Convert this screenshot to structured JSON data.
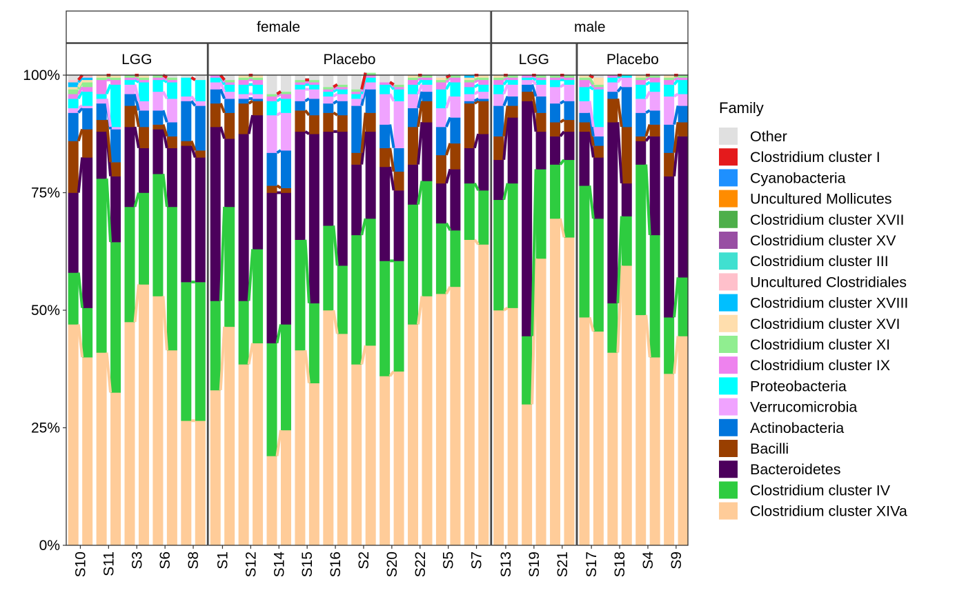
{
  "chart_data": {
    "type": "bar",
    "stacked": true,
    "ylabel": "",
    "xlabel": "",
    "ylim": [
      0,
      1
    ],
    "yticks": [
      {
        "value": 0,
        "label": "0%"
      },
      {
        "value": 0.25,
        "label": "25%"
      },
      {
        "value": 0.5,
        "label": "50%"
      },
      {
        "value": 0.75,
        "label": "75%"
      },
      {
        "value": 1,
        "label": "100%"
      }
    ],
    "legend_title": "Family",
    "legend_position": "right",
    "families": [
      {
        "name": "Other",
        "color": "#E0E0E0"
      },
      {
        "name": "Clostridium cluster I",
        "color": "#E41A1C"
      },
      {
        "name": "Cyanobacteria",
        "color": "#1E90FF"
      },
      {
        "name": "Uncultured Mollicutes",
        "color": "#FF8C00"
      },
      {
        "name": "Clostridium cluster XVII",
        "color": "#4DAF4A"
      },
      {
        "name": "Clostridium cluster XV",
        "color": "#984EA3"
      },
      {
        "name": "Clostridium cluster III",
        "color": "#40E0D0"
      },
      {
        "name": "Uncultured Clostridiales",
        "color": "#FFC0CB"
      },
      {
        "name": "Clostridium cluster XVIII",
        "color": "#00BFFF"
      },
      {
        "name": "Clostridium cluster XVI",
        "color": "#FFDEAD"
      },
      {
        "name": "Clostridium cluster XI",
        "color": "#90EE90"
      },
      {
        "name": "Clostridium cluster IX",
        "color": "#EE82EE"
      },
      {
        "name": "Proteobacteria",
        "color": "#00FFFF"
      },
      {
        "name": "Verrucomicrobia",
        "color": "#F0A3FF"
      },
      {
        "name": "Actinobacteria",
        "color": "#0075DC"
      },
      {
        "name": "Bacilli",
        "color": "#993F00"
      },
      {
        "name": "Bacteroidetes",
        "color": "#4C005C"
      },
      {
        "name": "Clostridium cluster IV",
        "color": "#2ECC40"
      },
      {
        "name": "Clostridium cluster XIVa",
        "color": "#FFCC99"
      }
    ],
    "sex_facets": [
      {
        "label": "female",
        "panels": [
          0,
          1
        ]
      },
      {
        "label": "male",
        "panels": [
          2,
          3
        ]
      }
    ],
    "panels": [
      {
        "label": "LGG",
        "samples": [
          {
            "sample": "S10",
            "values": [
              [
                0.47,
                0.11,
                0.17,
                0.11,
                0.06,
                0.01,
                0.02,
                0.01,
                0.01,
                0.005,
                0.01,
                0.005
              ],
              [
                0.4,
                0.105,
                0.32,
                0.06,
                0.045,
                0.005,
                0.03,
                0.01,
                0.01,
                0.005,
                0.005,
                0.005
              ]
            ]
          },
          {
            "sample": "S11",
            "values": [
              [
                0.41,
                0.37,
                0.1,
                0.025,
                0.035,
                0.01,
                0.01,
                0.03,
                0.005,
                0.005
              ],
              [
                0.325,
                0.32,
                0.14,
                0.03,
                0.07,
                0.005,
                0.09,
                0.01,
                0.005,
                0.005
              ]
            ]
          },
          {
            "sample": "S3",
            "values": [
              [
                0.475,
                0.245,
                0.17,
                0.045,
                0.025,
                0.02,
                0.01,
                0.005,
                0.005
              ],
              [
                0.555,
                0.195,
                0.095,
                0.045,
                0.035,
                0.02,
                0.04,
                0.005,
                0.005,
                0.005
              ]
            ]
          },
          {
            "sample": "S6",
            "values": [
              [
                0.53,
                0.26,
                0.095,
                0.01,
                0.03,
                0.04,
                0.025,
                0.005,
                0.005
              ],
              [
                0.415,
                0.305,
                0.125,
                0.025,
                0.03,
                0.05,
                0.035,
                0.005,
                0.005
              ]
            ]
          },
          {
            "sample": "S8",
            "values": [
              [
                0.265,
                0.295,
                0.29,
                0.01,
                0.085,
                0.01,
                0.04
              ],
              [
                0.265,
                0.295,
                0.265,
                0.015,
                0.095,
                0.01,
                0.045
              ]
            ]
          }
        ]
      },
      {
        "label": "Placebo",
        "samples": [
          {
            "sample": "S1",
            "values": [
              [
                0.33,
                0.19,
                0.37,
                0.05,
                0.03,
                0.015,
                0.01,
                0.005
              ],
              [
                0.465,
                0.255,
                0.145,
                0.055,
                0.03,
                0.015,
                0.015,
                0.005,
                0.005
              ]
            ]
          },
          {
            "sample": "S12",
            "values": [
              [
                0.385,
                0.135,
                0.355,
                0.065,
                0.01,
                0.01,
                0.02,
                0.01,
                0.005,
                0.005
              ],
              [
                0.43,
                0.2,
                0.285,
                0.03,
                0.005,
                0.01,
                0.02,
                0.01,
                0.005,
                0.005
              ]
            ]
          },
          {
            "sample": "S14",
            "values": [
              [
                0.19,
                0.24,
                0.32,
                0.015,
                0.07,
                0.08,
                0.03,
                0.01,
                0.005
              ],
              [
                0.245,
                0.225,
                0.28,
                0.01,
                0.08,
                0.08,
                0.03,
                0.01,
                0.005
              ]
            ]
          },
          {
            "sample": "S15",
            "values": [
              [
                0.415,
                0.235,
                0.23,
                0.045,
                0.02,
                0.025,
                0.01,
                0.005,
                0.005
              ],
              [
                0.345,
                0.17,
                0.36,
                0.04,
                0.035,
                0.02,
                0.01,
                0.005,
                0.005
              ]
            ]
          },
          {
            "sample": "S16",
            "values": [
              [
                0.5,
                0.18,
                0.2,
                0.04,
                0.02,
                0.015,
                0.01,
                0.005,
                0.005
              ],
              [
                0.45,
                0.145,
                0.285,
                0.035,
                0.03,
                0.015,
                0.01,
                0.005,
                0.005
              ]
            ]
          },
          {
            "sample": "S2",
            "values": [
              [
                0.385,
                0.275,
                0.15,
                0.025,
                0.1,
                0.015,
                0.01,
                0.005,
                0.005
              ],
              [
                0.425,
                0.27,
                0.185,
                0.04,
                0.05,
                0.015,
                0.01,
                0.005,
                0.005
              ]
            ]
          },
          {
            "sample": "S20",
            "values": [
              [
                0.36,
                0.245,
                0.2,
                0.04,
                0.05,
                0.065,
                0.02,
                0.005
              ],
              [
                0.37,
                0.235,
                0.15,
                0.04,
                0.05,
                0.1,
                0.025,
                0.005,
                0.005
              ]
            ]
          },
          {
            "sample": "S22",
            "values": [
              [
                0.47,
                0.255,
                0.085,
                0.08,
                0.04,
                0.03,
                0.02,
                0.01,
                0.005,
                0.005
              ],
              [
                0.53,
                0.245,
                0.125,
                0.045,
                0.02,
                0.015,
                0.01,
                0.005,
                0.005
              ]
            ]
          },
          {
            "sample": "S5",
            "values": [
              [
                0.535,
                0.15,
                0.085,
                0.06,
                0.06,
                0.04,
                0.04,
                0.015,
                0.005,
                0.005
              ],
              [
                0.55,
                0.12,
                0.13,
                0.055,
                0.055,
                0.045,
                0.03,
                0.01,
                0.005
              ]
            ]
          },
          {
            "sample": "S7",
            "values": [
              [
                0.65,
                0.12,
                0.075,
                0.095,
                0.005,
                0.015,
                0.015,
                0.01,
                0.005,
                0.005,
                0.005
              ],
              [
                0.64,
                0.115,
                0.12,
                0.07,
                0.005,
                0.015,
                0.015,
                0.01,
                0.005,
                0.005
              ]
            ]
          }
        ]
      },
      {
        "label": "LGG",
        "samples": [
          {
            "sample": "S13",
            "values": [
              [
                0.5,
                0.235,
                0.085,
                0.05,
                0.065,
                0.025,
                0.02,
                0.01,
                0.005,
                0.005
              ],
              [
                0.505,
                0.265,
                0.14,
                0.025,
                0.02,
                0.025,
                0.01,
                0.005,
                0.005
              ]
            ]
          },
          {
            "sample": "S19",
            "values": [
              [
                0.3,
                0.145,
                0.5,
                0.02,
                0.015,
                0.01,
                0.005,
                0.005
              ],
              [
                0.61,
                0.19,
                0.08,
                0.04,
                0.035,
                0.025,
                0.01,
                0.005,
                0.005
              ]
            ]
          },
          {
            "sample": "S21",
            "values": [
              [
                0.695,
                0.115,
                0.06,
                0.03,
                0.04,
                0.035,
                0.015,
                0.005,
                0.005
              ],
              [
                0.655,
                0.165,
                0.06,
                0.025,
                0.04,
                0.035,
                0.01,
                0.005,
                0.005
              ]
            ]
          }
        ]
      },
      {
        "label": "Placebo",
        "samples": [
          {
            "sample": "S17",
            "values": [
              [
                0.485,
                0.28,
                0.115,
                0.02,
                0.02,
                0.025,
                0.03,
                0.015,
                0.005,
                0.005
              ],
              [
                0.455,
                0.24,
                0.13,
                0.025,
                0.02,
                0.02,
                0.08,
                0.005,
                0.005,
                0.015
              ]
            ]
          },
          {
            "sample": "S18",
            "values": [
              [
                0.41,
                0.105,
                0.385,
                0.05,
                0.015,
                0.02,
                0.01,
                0.005
              ],
              [
                0.595,
                0.105,
                0.07,
                0.12,
                0.085,
                0.02,
                0.005
              ]
            ]
          },
          {
            "sample": "S4",
            "values": [
              [
                0.49,
                0.32,
                0.05,
                0.01,
                0.05,
                0.03,
                0.03,
                0.01,
                0.005,
                0.005
              ],
              [
                0.4,
                0.26,
                0.21,
                0.025,
                0.03,
                0.04,
                0.02,
                0.01,
                0.005
              ]
            ]
          },
          {
            "sample": "S9",
            "values": [
              [
                0.365,
                0.12,
                0.3,
                0.05,
                0.06,
                0.06,
                0.025,
                0.01,
                0.005,
                0.005
              ],
              [
                0.445,
                0.125,
                0.3,
                0.03,
                0.035,
                0.025,
                0.03,
                0.005,
                0.005
              ]
            ]
          }
        ]
      }
    ]
  }
}
